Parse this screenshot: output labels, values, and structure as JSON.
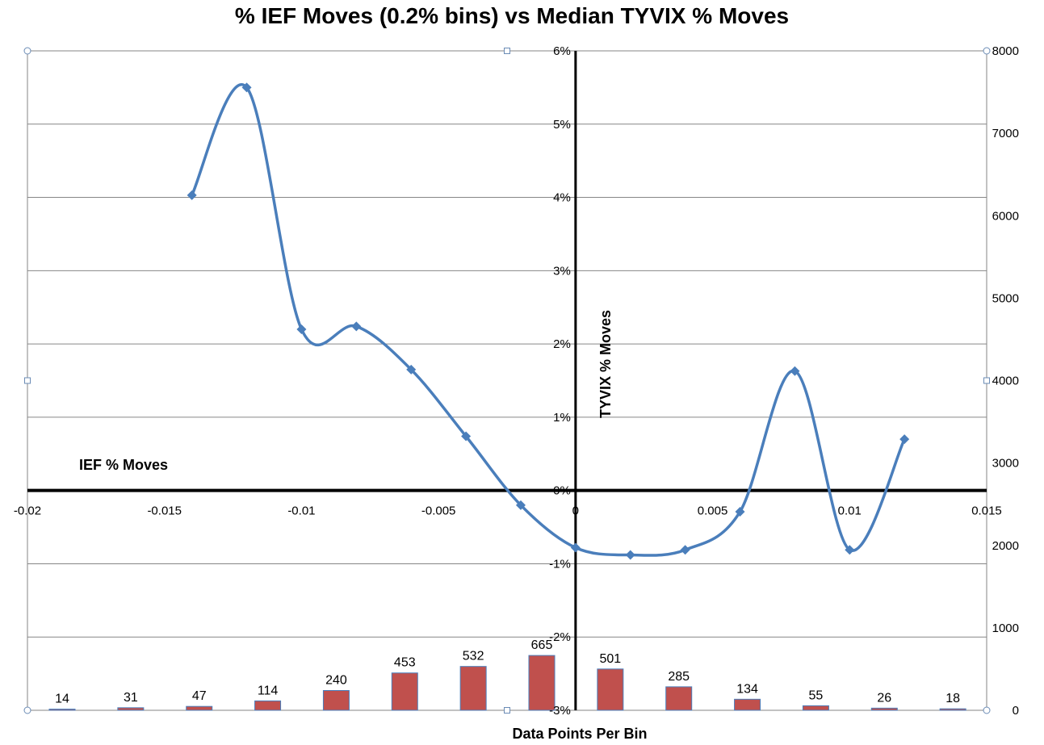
{
  "chart_data": {
    "type": "line",
    "title": "% IEF Moves  (0.2% bins) vs Median TYVIX % Moves",
    "xlabel": "IEF % Moves",
    "ylabel": "TYVIX % Moves",
    "secondary_xlabel": "Data Points Per Bin",
    "xlim": [
      -0.02,
      0.015
    ],
    "ylim": [
      -0.03,
      0.06
    ],
    "y2lim": [
      0,
      8000
    ],
    "x_ticks": [
      "-0.02",
      "-0.015",
      "-0.01",
      "-0.005",
      "0",
      "0.005",
      "0.01",
      "0.015"
    ],
    "y_ticks": [
      "-3%",
      "-2%",
      "-1%",
      "0%",
      "1%",
      "2%",
      "3%",
      "4%",
      "5%",
      "6%"
    ],
    "y2_ticks": [
      "0",
      "1000",
      "2000",
      "3000",
      "4000",
      "5000",
      "6000",
      "7000",
      "8000"
    ],
    "grid": true,
    "colors": {
      "line": "#4a7ebb",
      "bars": "#c0504d",
      "bar_edge": "#4a7ebb",
      "grid": "#868686",
      "axis": "#000000"
    },
    "series": [
      {
        "type": "line",
        "x": [
          -0.014,
          -0.012,
          -0.01,
          -0.008,
          -0.006,
          -0.004,
          -0.002,
          0,
          0.002,
          0.004,
          0.006,
          0.008,
          0.01,
          0.012
        ],
        "values": [
          0.0403,
          0.055,
          0.022,
          0.0224,
          0.0165,
          0.0074,
          -0.002,
          -0.0078,
          -0.0088,
          -0.0081,
          -0.0029,
          0.0163,
          -0.0081,
          0.007
        ]
      },
      {
        "type": "bar",
        "axis": "secondary",
        "x": [
          -0.02,
          -0.0175,
          -0.015,
          -0.0125,
          -0.01,
          -0.0075,
          -0.005,
          -0.0025,
          0,
          0.0025,
          0.005,
          0.0075,
          0.01,
          0.0125
        ],
        "values": [
          14,
          31,
          47,
          114,
          240,
          453,
          532,
          665,
          501,
          285,
          134,
          55,
          26,
          18
        ],
        "labels": [
          "14",
          "31",
          "47",
          "114",
          "240",
          "453",
          "532",
          "665",
          "501",
          "285",
          "134",
          "55",
          "26",
          "18"
        ]
      }
    ]
  }
}
